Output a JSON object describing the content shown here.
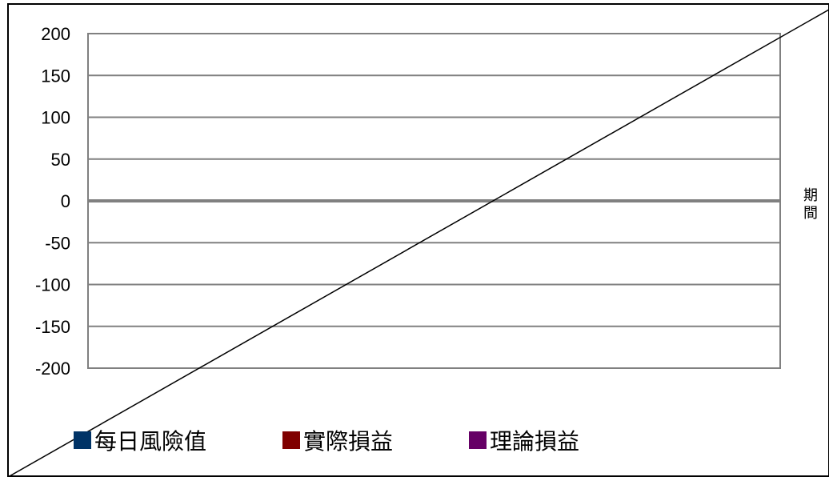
{
  "chart_data": {
    "type": "line",
    "title": "",
    "xlabel": "期間",
    "ylabel": "",
    "ylim": [
      -200,
      200
    ],
    "yticks": [
      200,
      150,
      100,
      50,
      0,
      -50,
      -100,
      -150,
      -200
    ],
    "grid": true,
    "legend_position": "bottom",
    "series": [
      {
        "name": "每日風險值",
        "values": [],
        "color": "#003366"
      },
      {
        "name": "實際損益",
        "values": [],
        "color": "#800000"
      },
      {
        "name": "理論損益",
        "values": [],
        "color": "#660066"
      }
    ]
  }
}
